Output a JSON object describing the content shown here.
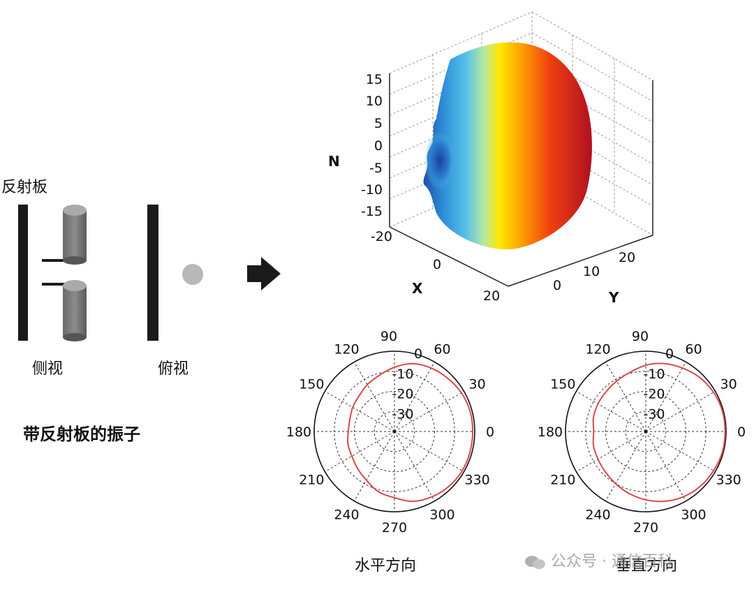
{
  "diagram": {
    "labels": {
      "reflector": "反射板",
      "side_view": "侧视",
      "top_view": "俯视",
      "caption": "带反射板的振子",
      "horizontal": "水平方向",
      "vertical": "垂直方向"
    },
    "watermark": "公众号 · 通信百科"
  },
  "chart_data": [
    {
      "type": "surface3d",
      "title": "",
      "zlabel": "N",
      "xlabel": "X",
      "ylabel": "Y",
      "z_ticks": [
        "15",
        "10",
        "5",
        "0",
        "-5",
        "-10",
        "-15",
        "-20"
      ],
      "x_ticks": [
        "0",
        "20"
      ],
      "y_ticks": [
        "0",
        "10",
        "20"
      ],
      "colormap": [
        "#1f4fa8",
        "#2f8fd8",
        "#55c0e8",
        "#b8e8a0",
        "#ffe800",
        "#ffa000",
        "#f04010",
        "#c01020"
      ]
    },
    {
      "type": "polar",
      "name": "horizontal",
      "angle_ticks": [
        "0",
        "30",
        "60",
        "90",
        "120",
        "150",
        "180",
        "210",
        "240",
        "270",
        "300",
        "330"
      ],
      "radial_ticks": [
        "0",
        "-10",
        "-20",
        "-30"
      ],
      "series_color": "#d84a4a",
      "gain_db": [
        [
          0,
          -1
        ],
        [
          15,
          -1
        ],
        [
          30,
          -1.5
        ],
        [
          45,
          -2.5
        ],
        [
          60,
          -3.5
        ],
        [
          75,
          -5
        ],
        [
          90,
          -8
        ],
        [
          105,
          -11
        ],
        [
          120,
          -13
        ],
        [
          135,
          -15
        ],
        [
          150,
          -16
        ],
        [
          165,
          -17
        ],
        [
          180,
          -17
        ],
        [
          195,
          -16
        ],
        [
          210,
          -15.5
        ],
        [
          225,
          -14
        ],
        [
          240,
          -12
        ],
        [
          255,
          -9
        ],
        [
          270,
          -7
        ],
        [
          285,
          -4
        ],
        [
          300,
          -2.5
        ],
        [
          315,
          -1.5
        ],
        [
          330,
          -1
        ],
        [
          345,
          -1
        ],
        [
          360,
          -1
        ]
      ]
    },
    {
      "type": "polar",
      "name": "vertical",
      "angle_ticks": [
        "0",
        "30",
        "60",
        "90",
        "120",
        "150",
        "180",
        "210",
        "240",
        "270",
        "300",
        "330"
      ],
      "radial_ticks": [
        "0",
        "-10",
        "-20",
        "-30"
      ],
      "series_color": "#d84a4a",
      "gain_db": [
        [
          0,
          -0.5
        ],
        [
          15,
          -0.5
        ],
        [
          30,
          -1
        ],
        [
          45,
          -2
        ],
        [
          60,
          -3.5
        ],
        [
          75,
          -5
        ],
        [
          90,
          -7
        ],
        [
          105,
          -9.5
        ],
        [
          120,
          -11
        ],
        [
          135,
          -12
        ],
        [
          150,
          -12.5
        ],
        [
          165,
          -13
        ],
        [
          180,
          -14
        ],
        [
          195,
          -13
        ],
        [
          210,
          -12.5
        ],
        [
          225,
          -11.5
        ],
        [
          240,
          -10
        ],
        [
          255,
          -8
        ],
        [
          270,
          -6
        ],
        [
          285,
          -4
        ],
        [
          300,
          -2.5
        ],
        [
          315,
          -1.5
        ],
        [
          330,
          -1
        ],
        [
          345,
          -0.5
        ],
        [
          360,
          -0.5
        ]
      ]
    }
  ]
}
